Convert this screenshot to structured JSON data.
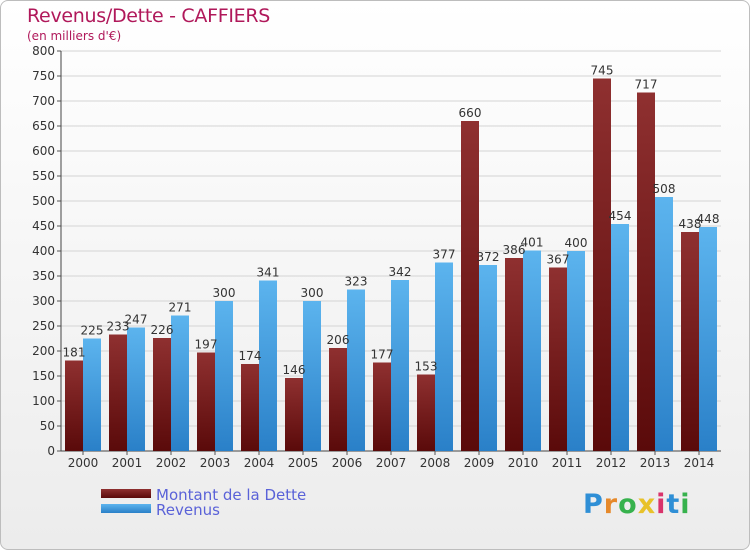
{
  "header": {
    "title": "Revenus/Dette - CAFFIERS",
    "subtitle": "(en milliers d'€)"
  },
  "legend": [
    {
      "label": "Montant de la Dette",
      "color": "#7a1c1c"
    },
    {
      "label": "Revenus",
      "color": "#4aa8e8"
    }
  ],
  "logo": {
    "text": "Proxiti",
    "colors": [
      "#2f8fd6",
      "#e6892a",
      "#37b24d",
      "#e8c22a",
      "#d9336b",
      "#2f8fd6",
      "#37b24d"
    ]
  },
  "chart_data": {
    "type": "bar",
    "categories": [
      "2000",
      "2001",
      "2002",
      "2003",
      "2004",
      "2005",
      "2006",
      "2007",
      "2008",
      "2009",
      "2010",
      "2011",
      "2012",
      "2013",
      "2014"
    ],
    "series": [
      {
        "name": "Montant de la Dette",
        "values": [
          181,
          233,
          226,
          197,
          174,
          146,
          206,
          177,
          153,
          660,
          386,
          367,
          745,
          717,
          438
        ],
        "color": "#7a1c1c"
      },
      {
        "name": "Revenus",
        "values": [
          225,
          247,
          271,
          300,
          341,
          300,
          323,
          342,
          377,
          372,
          401,
          400,
          454,
          508,
          448
        ],
        "color": "#4aa8e8"
      }
    ],
    "ylim": [
      0,
      800
    ],
    "yticks": [
      0,
      50,
      100,
      150,
      200,
      250,
      300,
      350,
      400,
      450,
      500,
      550,
      600,
      650,
      700,
      750,
      800
    ],
    "grid": true
  }
}
